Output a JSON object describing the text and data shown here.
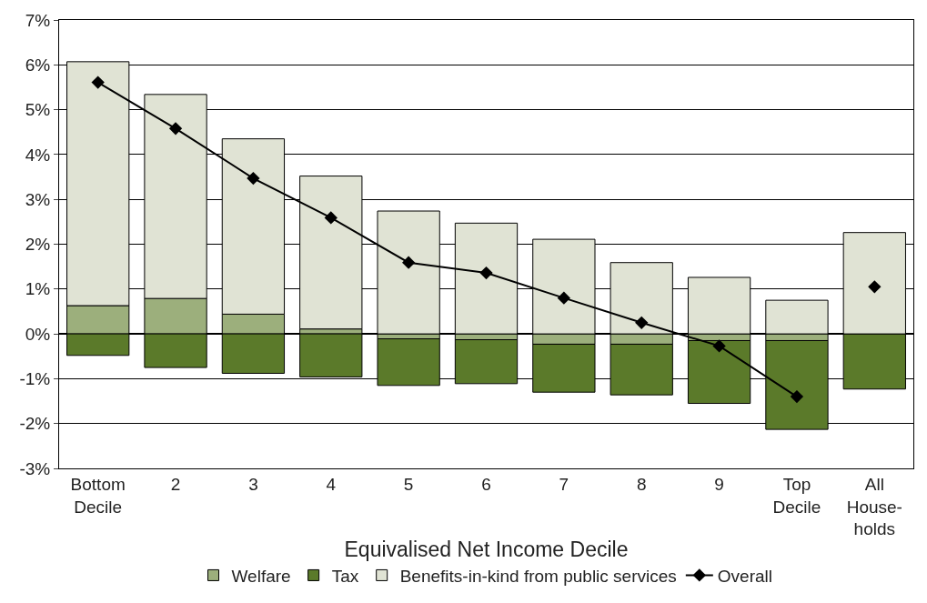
{
  "chart_data": {
    "type": "bar",
    "stacked": true,
    "xlabel": "Equivalised Net Income Decile",
    "categories": [
      "Bottom\nDecile",
      "2",
      "3",
      "4",
      "5",
      "6",
      "7",
      "8",
      "9",
      "Top\nDecile",
      "All\nHouse-\nholds"
    ],
    "series": [
      {
        "name": "Welfare",
        "color": "#9caf7c",
        "values": [
          0.63,
          0.79,
          0.44,
          0.11,
          -0.11,
          -0.13,
          -0.23,
          -0.23,
          -0.15,
          -0.15,
          null
        ]
      },
      {
        "name": "Tax",
        "color": "#5b7a2a",
        "values": [
          -0.48,
          -0.75,
          -0.88,
          -0.96,
          -1.04,
          -0.98,
          -1.07,
          -1.13,
          -1.4,
          -1.98,
          -1.23
        ]
      },
      {
        "name": "Benefits-in-kind from public services",
        "color": "#e0e3d4",
        "values": [
          5.44,
          4.55,
          3.91,
          3.41,
          2.74,
          2.47,
          2.11,
          1.59,
          1.26,
          0.75,
          2.26
        ]
      },
      {
        "name": "Overall",
        "type": "line",
        "color": "#000000",
        "marker": "diamond",
        "values": [
          5.61,
          4.58,
          3.47,
          2.59,
          1.59,
          1.36,
          0.8,
          0.25,
          -0.27,
          -1.4,
          null
        ]
      },
      {
        "type": "scatter",
        "color": "#000000",
        "marker": "diamond",
        "values": [
          null,
          null,
          null,
          null,
          null,
          null,
          null,
          null,
          null,
          null,
          1.05
        ]
      }
    ],
    "ylim": [
      -3,
      7
    ],
    "yticks": [
      {
        "value": -3,
        "label": "-3%"
      },
      {
        "value": -2,
        "label": "-2%"
      },
      {
        "value": -1,
        "label": "-1%"
      },
      {
        "value": 0,
        "label": "0%"
      },
      {
        "value": 1,
        "label": "1%"
      },
      {
        "value": 2,
        "label": "2%"
      },
      {
        "value": 3,
        "label": "3%"
      },
      {
        "value": 4,
        "label": "4%"
      },
      {
        "value": 5,
        "label": "5%"
      },
      {
        "value": 6,
        "label": "6%"
      },
      {
        "value": 7,
        "label": "7%"
      }
    ],
    "grid": "y",
    "legend": "bottom"
  }
}
